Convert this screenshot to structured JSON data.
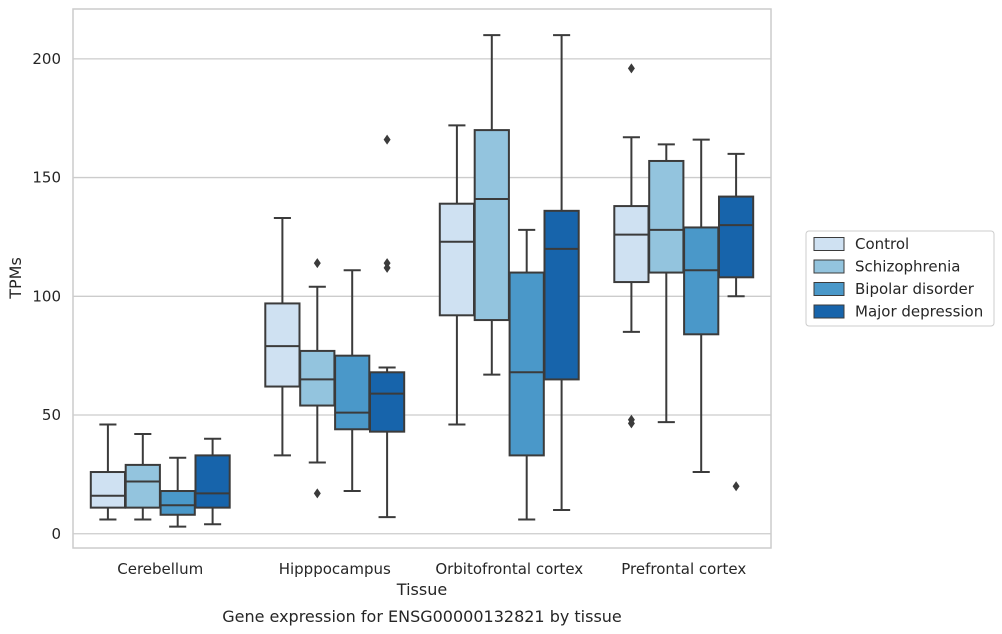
{
  "chart_data": {
    "type": "boxplot",
    "title": "",
    "caption": "Gene expression for ENSG00000132821 by tissue",
    "xlabel": "Tissue",
    "ylabel": "TPMs",
    "ylim": [
      -6,
      221
    ],
    "yticks": [
      0,
      50,
      100,
      150,
      200
    ],
    "grid": true,
    "legend_position": "right",
    "categories": [
      "Cerebellum",
      "Hipppocampus",
      "Orbitofrontal cortex",
      "Prefrontal cortex"
    ],
    "series": [
      {
        "name": "Control",
        "color": "#cfe1f2",
        "boxes": [
          {
            "whisker_low": 6,
            "q1": 11,
            "median": 16,
            "q3": 26,
            "whisker_high": 46,
            "outliers": []
          },
          {
            "whisker_low": 33,
            "q1": 62,
            "median": 79,
            "q3": 97,
            "whisker_high": 133,
            "outliers": []
          },
          {
            "whisker_low": 46,
            "q1": 92,
            "median": 123,
            "q3": 139,
            "whisker_high": 172,
            "outliers": []
          },
          {
            "whisker_low": 85,
            "q1": 106,
            "median": 126,
            "q3": 138,
            "whisker_high": 167,
            "outliers": [
              196,
              48,
              46.5
            ]
          }
        ]
      },
      {
        "name": "Schizophrenia",
        "color": "#93c4de",
        "boxes": [
          {
            "whisker_low": 6,
            "q1": 11,
            "median": 22,
            "q3": 29,
            "whisker_high": 42,
            "outliers": []
          },
          {
            "whisker_low": 30,
            "q1": 54,
            "median": 65,
            "q3": 77,
            "whisker_high": 104,
            "outliers": [
              114,
              17
            ]
          },
          {
            "whisker_low": 67,
            "q1": 90,
            "median": 141,
            "q3": 170,
            "whisker_high": 210,
            "outliers": []
          },
          {
            "whisker_low": 47,
            "q1": 110,
            "median": 128,
            "q3": 157,
            "whisker_high": 164,
            "outliers": []
          }
        ]
      },
      {
        "name": "Bipolar disorder",
        "color": "#4a98c9",
        "boxes": [
          {
            "whisker_low": 3,
            "q1": 8,
            "median": 12,
            "q3": 18,
            "whisker_high": 32,
            "outliers": []
          },
          {
            "whisker_low": 18,
            "q1": 44,
            "median": 51,
            "q3": 75,
            "whisker_high": 111,
            "outliers": []
          },
          {
            "whisker_low": 6,
            "q1": 33,
            "median": 68,
            "q3": 110,
            "whisker_high": 128,
            "outliers": []
          },
          {
            "whisker_low": 26,
            "q1": 84,
            "median": 111,
            "q3": 129,
            "whisker_high": 166,
            "outliers": []
          }
        ]
      },
      {
        "name": "Major depression",
        "color": "#1764ab",
        "boxes": [
          {
            "whisker_low": 4,
            "q1": 11,
            "median": 17,
            "q3": 33,
            "whisker_high": 40,
            "outliers": []
          },
          {
            "whisker_low": 7,
            "q1": 43,
            "median": 59,
            "q3": 68,
            "whisker_high": 70,
            "outliers": [
              166,
              114,
              112
            ]
          },
          {
            "whisker_low": 10,
            "q1": 65,
            "median": 120,
            "q3": 136,
            "whisker_high": 210,
            "outliers": []
          },
          {
            "whisker_low": 100,
            "q1": 108,
            "median": 130,
            "q3": 142,
            "whisker_high": 160,
            "outliers": [
              20
            ]
          }
        ]
      }
    ]
  }
}
